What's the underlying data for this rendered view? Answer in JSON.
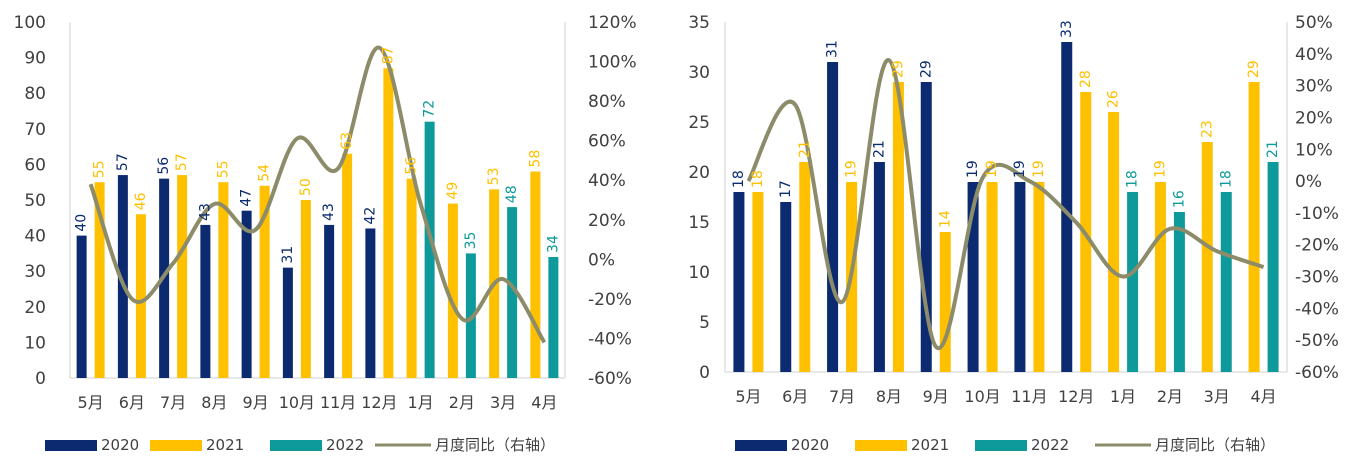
{
  "colors": {
    "s2020": "#0b2a6f",
    "s2021": "#ffc000",
    "s2022": "#0e9a9a",
    "yoy": "#8c8c6a",
    "axis": "#d0d0d0",
    "text": "#404040"
  },
  "chart_data": [
    {
      "type": "bar",
      "categories": [
        "5月",
        "6月",
        "7月",
        "8月",
        "9月",
        "10月",
        "11月",
        "12月",
        "1月",
        "2月",
        "3月",
        "4月"
      ],
      "series": [
        {
          "name": "2020",
          "values": [
            40,
            57,
            56,
            43,
            47,
            31,
            43,
            42,
            null,
            null,
            null,
            null
          ]
        },
        {
          "name": "2021",
          "values": [
            55,
            46,
            57,
            55,
            54,
            50,
            63,
            87,
            56,
            49,
            53,
            58
          ]
        },
        {
          "name": "2022",
          "values": [
            null,
            null,
            null,
            null,
            null,
            null,
            null,
            null,
            72,
            35,
            48,
            34
          ]
        },
        {
          "name": "月度同比（右轴）",
          "type": "line",
          "axis": "right",
          "values": [
            38,
            -20,
            -2,
            28,
            15,
            61,
            46,
            107,
            28,
            -30,
            -10,
            -42
          ]
        }
      ],
      "ylim": [
        0,
        100
      ],
      "yticks": [
        "0",
        "10",
        "20",
        "30",
        "40",
        "50",
        "60",
        "70",
        "80",
        "90",
        "100"
      ],
      "y2lim": [
        -60,
        120
      ],
      "y2ticks": [
        "-60%",
        "-40%",
        "-20%",
        "0%",
        "20%",
        "40%",
        "60%",
        "80%",
        "100%",
        "120%"
      ],
      "legend": [
        "2020",
        "2021",
        "2022",
        "月度同比（右轴）"
      ],
      "legend_position": "bottom",
      "grid": false
    },
    {
      "type": "bar",
      "categories": [
        "5月",
        "6月",
        "7月",
        "8月",
        "9月",
        "10月",
        "11月",
        "12月",
        "1月",
        "2月",
        "3月",
        "4月"
      ],
      "series": [
        {
          "name": "2020",
          "values": [
            18,
            17,
            31,
            21,
            29,
            19,
            19,
            33,
            null,
            null,
            null,
            null
          ]
        },
        {
          "name": "2021",
          "values": [
            18,
            21,
            19,
            29,
            14,
            19,
            19,
            28,
            26,
            19,
            23,
            29
          ]
        },
        {
          "name": "2022",
          "values": [
            null,
            null,
            null,
            null,
            null,
            null,
            null,
            null,
            18,
            16,
            18,
            21
          ]
        },
        {
          "name": "月度同比（右轴）",
          "type": "line",
          "axis": "right",
          "values": [
            0,
            24,
            -38,
            38,
            -52,
            1,
            0,
            -13,
            -30,
            -15,
            -22,
            -27
          ]
        }
      ],
      "ylim": [
        0,
        35
      ],
      "yticks": [
        "0",
        "5",
        "10",
        "15",
        "20",
        "25",
        "30",
        "35"
      ],
      "y2lim": [
        -60,
        50
      ],
      "y2ticks": [
        "-60%",
        "-50%",
        "-40%",
        "-30%",
        "-20%",
        "-10%",
        "0%",
        "10%",
        "20%",
        "30%",
        "40%",
        "50%"
      ],
      "legend": [
        "2020",
        "2021",
        "2022",
        "月度同比（右轴）"
      ],
      "legend_position": "bottom",
      "grid": false
    }
  ]
}
